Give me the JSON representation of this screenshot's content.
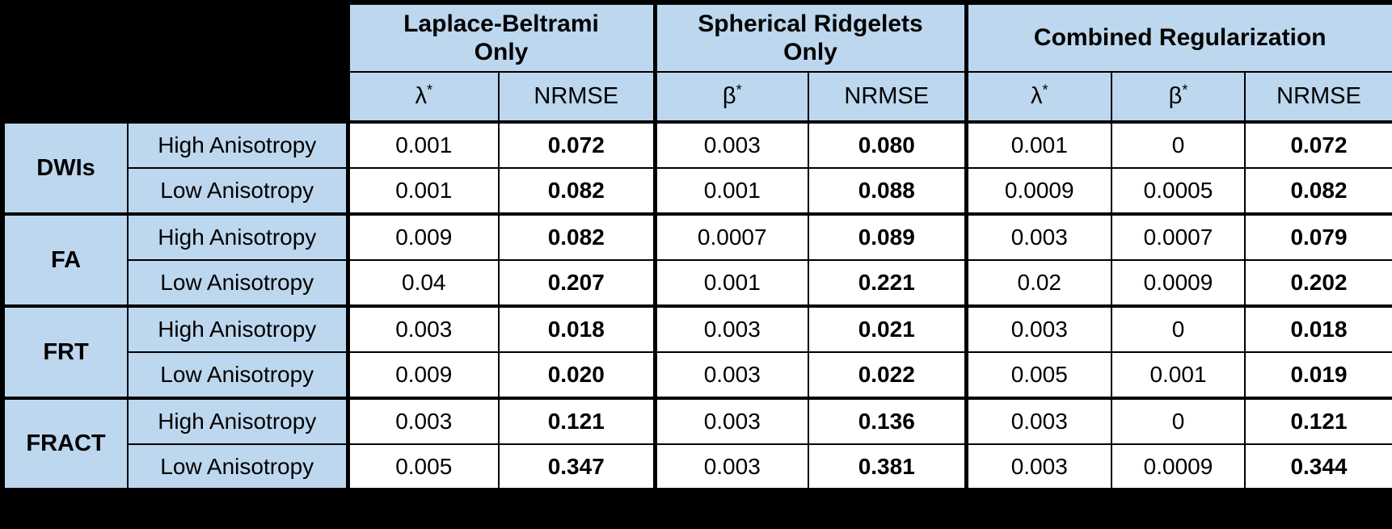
{
  "colors": {
    "background": "#000000",
    "header_bg": "#BDD7EE",
    "cell_bg": "#FFFFFF",
    "border": "#000000",
    "text": "#000000"
  },
  "table": {
    "column_groups": [
      {
        "label": "Laplace-Beltrami Only",
        "columns": [
          {
            "symbol": "λ",
            "sup": "*"
          },
          {
            "symbol": "NRMSE",
            "sup": ""
          }
        ]
      },
      {
        "label": "Spherical Ridgelets Only",
        "columns": [
          {
            "symbol": "β",
            "sup": "*"
          },
          {
            "symbol": "NRMSE",
            "sup": ""
          }
        ]
      },
      {
        "label": "Combined Regularization",
        "columns": [
          {
            "symbol": "λ",
            "sup": "*"
          },
          {
            "symbol": "β",
            "sup": "*"
          },
          {
            "symbol": "NRMSE",
            "sup": ""
          }
        ]
      }
    ],
    "nrmse_column_indices": [
      1,
      3,
      6
    ],
    "row_groups": [
      {
        "label": "DWIs",
        "rows": [
          {
            "condition": "High Anisotropy",
            "values": [
              "0.001",
              "0.072",
              "0.003",
              "0.080",
              "0.001",
              "0",
              "0.072"
            ]
          },
          {
            "condition": "Low Anisotropy",
            "values": [
              "0.001",
              "0.082",
              "0.001",
              "0.088",
              "0.0009",
              "0.0005",
              "0.082"
            ]
          }
        ]
      },
      {
        "label": "FA",
        "rows": [
          {
            "condition": "High Anisotropy",
            "values": [
              "0.009",
              "0.082",
              "0.0007",
              "0.089",
              "0.003",
              "0.0007",
              "0.079"
            ]
          },
          {
            "condition": "Low Anisotropy",
            "values": [
              "0.04",
              "0.207",
              "0.001",
              "0.221",
              "0.02",
              "0.0009",
              "0.202"
            ]
          }
        ]
      },
      {
        "label": "FRT",
        "rows": [
          {
            "condition": "High Anisotropy",
            "values": [
              "0.003",
              "0.018",
              "0.003",
              "0.021",
              "0.003",
              "0",
              "0.018"
            ]
          },
          {
            "condition": "Low Anisotropy",
            "values": [
              "0.009",
              "0.020",
              "0.003",
              "0.022",
              "0.005",
              "0.001",
              "0.019"
            ]
          }
        ]
      },
      {
        "label": "FRACT",
        "rows": [
          {
            "condition": "High Anisotropy",
            "values": [
              "0.003",
              "0.121",
              "0.003",
              "0.136",
              "0.003",
              "0",
              "0.121"
            ]
          },
          {
            "condition": "Low Anisotropy",
            "values": [
              "0.005",
              "0.347",
              "0.003",
              "0.381",
              "0.003",
              "0.0009",
              "0.344"
            ]
          }
        ]
      }
    ]
  }
}
